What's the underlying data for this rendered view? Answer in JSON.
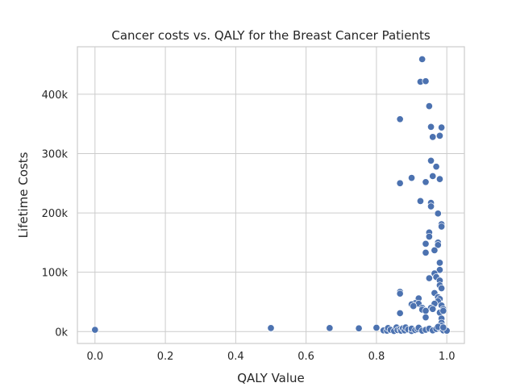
{
  "chart_data": {
    "type": "scatter",
    "title": "Cancer costs vs. QALY for the Breast Cancer Patients",
    "xlabel": "QALY Value",
    "ylabel": "Lifetime Costs",
    "xlim": [
      -0.05,
      1.05
    ],
    "ylim": [
      -20000,
      480000
    ],
    "grid": true,
    "x_ticks": [
      {
        "value": 0.0,
        "label": "0.0"
      },
      {
        "value": 0.2,
        "label": "0.2"
      },
      {
        "value": 0.4,
        "label": "0.4"
      },
      {
        "value": 0.6,
        "label": "0.6"
      },
      {
        "value": 0.8,
        "label": "0.8"
      },
      {
        "value": 1.0,
        "label": "1.0"
      }
    ],
    "y_ticks": [
      {
        "value": 0,
        "label": "0k"
      },
      {
        "value": 100000,
        "label": "100k"
      },
      {
        "value": 200000,
        "label": "200k"
      },
      {
        "value": 300000,
        "label": "300k"
      },
      {
        "value": 400000,
        "label": "400k"
      }
    ],
    "marker_color": "#4c72b0",
    "points": [
      [
        0.0,
        3000
      ],
      [
        0.5,
        5000
      ],
      [
        0.5,
        6000
      ],
      [
        0.667,
        6000
      ],
      [
        0.75,
        5500
      ],
      [
        0.8,
        6500
      ],
      [
        0.82,
        2000
      ],
      [
        0.83,
        1500
      ],
      [
        0.833,
        6000
      ],
      [
        0.84,
        3000
      ],
      [
        0.85,
        1000
      ],
      [
        0.857,
        7000
      ],
      [
        0.86,
        2500
      ],
      [
        0.867,
        4000
      ],
      [
        0.87,
        1500
      ],
      [
        0.875,
        5500
      ],
      [
        0.88,
        2000
      ],
      [
        0.883,
        7000
      ],
      [
        0.89,
        3500
      ],
      [
        0.9,
        1000
      ],
      [
        0.9,
        5000
      ],
      [
        0.91,
        2500
      ],
      [
        0.917,
        4000
      ],
      [
        0.92,
        6500
      ],
      [
        0.93,
        1500
      ],
      [
        0.94,
        3000
      ],
      [
        0.95,
        5000
      ],
      [
        0.96,
        2000
      ],
      [
        0.97,
        4500
      ],
      [
        0.98,
        6000
      ],
      [
        0.99,
        2000
      ],
      [
        1.0,
        1500
      ],
      [
        0.93,
        459000
      ],
      [
        0.925,
        421000
      ],
      [
        0.94,
        422000
      ],
      [
        0.95,
        380000
      ],
      [
        0.867,
        358000
      ],
      [
        0.955,
        345000
      ],
      [
        0.985,
        344000
      ],
      [
        0.96,
        328000
      ],
      [
        0.98,
        330000
      ],
      [
        0.955,
        288000
      ],
      [
        0.97,
        278000
      ],
      [
        0.96,
        262000
      ],
      [
        0.9,
        259000
      ],
      [
        0.98,
        257000
      ],
      [
        0.94,
        252000
      ],
      [
        0.867,
        250000
      ],
      [
        0.925,
        220000
      ],
      [
        0.955,
        217000
      ],
      [
        0.955,
        211000
      ],
      [
        0.975,
        199000
      ],
      [
        0.985,
        181000
      ],
      [
        0.985,
        177000
      ],
      [
        0.95,
        167000
      ],
      [
        0.95,
        160000
      ],
      [
        0.975,
        150000
      ],
      [
        0.975,
        146000
      ],
      [
        0.94,
        148000
      ],
      [
        0.965,
        137000
      ],
      [
        0.94,
        133000
      ],
      [
        0.98,
        116000
      ],
      [
        0.98,
        104000
      ],
      [
        0.965,
        98000
      ],
      [
        0.97,
        92000
      ],
      [
        0.95,
        90000
      ],
      [
        0.98,
        86000
      ],
      [
        0.98,
        78000
      ],
      [
        0.985,
        73000
      ],
      [
        0.867,
        67000
      ],
      [
        0.867,
        64000
      ],
      [
        0.965,
        65000
      ],
      [
        0.975,
        58000
      ],
      [
        0.98,
        55000
      ],
      [
        0.92,
        56000
      ],
      [
        0.975,
        51000
      ],
      [
        0.91,
        48000
      ],
      [
        0.92,
        47000
      ],
      [
        0.965,
        47000
      ],
      [
        0.9,
        46000
      ],
      [
        0.905,
        43000
      ],
      [
        0.985,
        44000
      ],
      [
        0.93,
        40000
      ],
      [
        0.955,
        40000
      ],
      [
        0.99,
        38000
      ],
      [
        0.93,
        37000
      ],
      [
        0.96,
        38000
      ],
      [
        0.94,
        35000
      ],
      [
        0.98,
        32000
      ],
      [
        0.867,
        31000
      ],
      [
        0.99,
        35000
      ],
      [
        0.94,
        24000
      ],
      [
        0.985,
        22000
      ],
      [
        0.985,
        15000
      ],
      [
        0.985,
        10000
      ],
      [
        0.975,
        8000
      ],
      [
        0.99,
        7000
      ]
    ]
  }
}
